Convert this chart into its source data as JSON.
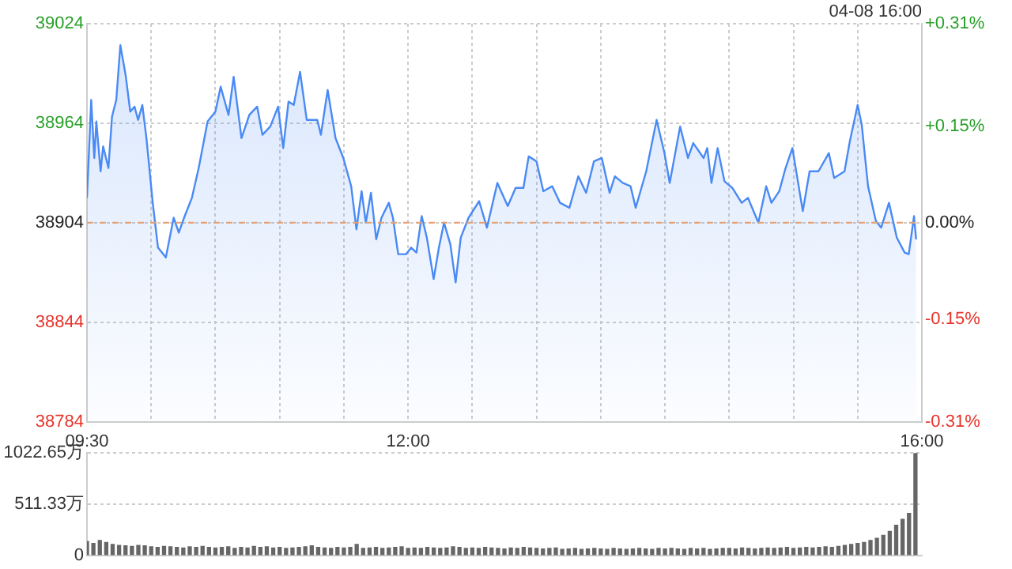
{
  "chart_data": [
    {
      "type": "area",
      "color": "#4a8af4",
      "x": [
        9.5,
        9.533,
        9.557,
        9.573,
        9.606,
        9.626,
        9.667,
        9.695,
        9.728,
        9.76,
        9.801,
        9.837,
        9.87,
        9.898,
        9.931,
        9.963,
        10.012,
        10.053,
        10.114,
        10.175,
        10.215,
        10.256,
        10.317,
        10.37,
        10.439,
        10.5,
        10.541,
        10.602,
        10.642,
        10.703,
        10.764,
        10.825,
        10.866,
        10.927,
        10.988,
        11.028,
        11.069,
        11.11,
        11.159,
        11.211,
        11.293,
        11.321,
        11.374,
        11.435,
        11.496,
        11.557,
        11.598,
        11.638,
        11.671,
        11.711,
        11.752,
        11.793,
        11.85,
        11.882,
        11.923,
        11.984,
        12.024,
        12.065,
        12.106,
        12.146,
        12.199,
        12.24,
        12.28,
        12.329,
        12.37,
        12.41,
        12.471,
        12.553,
        12.614,
        12.695,
        12.776,
        12.837,
        12.898,
        12.939,
        13.0,
        13.053,
        13.122,
        13.183,
        13.256,
        13.325,
        13.386,
        13.447,
        13.508,
        13.569,
        13.61,
        13.671,
        13.732,
        13.772,
        13.854,
        13.935,
        13.996,
        14.037,
        14.118,
        14.179,
        14.22,
        14.301,
        14.329,
        14.362,
        14.41,
        14.463,
        14.524,
        14.597,
        14.646,
        14.727,
        14.788,
        14.829,
        14.89,
        14.939,
        14.992,
        15.073,
        15.126,
        15.195,
        15.276,
        15.317,
        15.398,
        15.439,
        15.5,
        15.532,
        15.581,
        15.642,
        15.683,
        15.744,
        15.805,
        15.866,
        15.898,
        15.939,
        15.955
      ],
      "values": [
        38919,
        38978,
        38943,
        38965,
        38935,
        38950,
        38937,
        38968,
        38978,
        39011,
        38993,
        38971,
        38974,
        38966,
        38975,
        38955,
        38916,
        38889,
        38883,
        38907,
        38898,
        38907,
        38919,
        38937,
        38965,
        38971,
        38986,
        38969,
        38992,
        38955,
        38969,
        38974,
        38957,
        38962,
        38974,
        38949,
        38977,
        38975,
        38995,
        38966,
        38966,
        38957,
        38984,
        38955,
        38943,
        38926,
        38900,
        38923,
        38904,
        38922,
        38894,
        38907,
        38916,
        38907,
        38885,
        38885,
        38889,
        38886,
        38908,
        38895,
        38870,
        38889,
        38904,
        38891,
        38868,
        38895,
        38907,
        38917,
        38901,
        38928,
        38914,
        38925,
        38925,
        38944,
        38941,
        38923,
        38926,
        38916,
        38913,
        38932,
        38922,
        38941,
        38943,
        38922,
        38932,
        38928,
        38926,
        38913,
        38935,
        38966,
        38946,
        38928,
        38962,
        38943,
        38952,
        38943,
        38949,
        38928,
        38949,
        38929,
        38925,
        38916,
        38919,
        38904,
        38926,
        38916,
        38923,
        38937,
        38949,
        38911,
        38935,
        38935,
        38946,
        38931,
        38935,
        38953,
        38975,
        38963,
        38926,
        38905,
        38901,
        38916,
        38895,
        38886,
        38885,
        38908,
        38894
      ],
      "xlim": [
        9.5,
        16
      ],
      "xticks": [
        {
          "value": 9.5,
          "label": "09:30"
        },
        {
          "value": 10,
          "label": null
        },
        {
          "value": 10.5,
          "label": null
        },
        {
          "value": 11,
          "label": null
        },
        {
          "value": 11.5,
          "label": null
        },
        {
          "value": 12,
          "label": "12:00"
        },
        {
          "value": 12.5,
          "label": null
        },
        {
          "value": 13,
          "label": null
        },
        {
          "value": 13.5,
          "label": null
        },
        {
          "value": 14,
          "label": null
        },
        {
          "value": 14.5,
          "label": null
        },
        {
          "value": 15,
          "label": null
        },
        {
          "value": 15.5,
          "label": null
        },
        {
          "value": 16,
          "label": "16:00"
        }
      ],
      "ylim": [
        38784,
        39024
      ],
      "yticks": [
        38784,
        38844,
        38904,
        38964,
        39024
      ],
      "y2lim": [
        -0.31,
        0.31
      ],
      "y2ticks": [
        {
          "value": -0.31,
          "label": "-0.31%"
        },
        {
          "value": -0.15,
          "label": "-0.15%"
        },
        {
          "value": 0,
          "label": "0.00%"
        },
        {
          "value": 0.15,
          "label": "+0.15%"
        },
        {
          "value": 0.31,
          "label": "+0.31%"
        }
      ],
      "grid": true,
      "legend": false,
      "ref_lines": [
        {
          "axis": "y",
          "value": 38904,
          "color": "#e8a070",
          "line_style": "dashed"
        }
      ],
      "annotations": [
        "04-08 16:00"
      ]
    },
    {
      "type": "bar",
      "color": "#666666",
      "tick_labels": "y",
      "grid": "y",
      "legend": false,
      "x": [
        9.5,
        9.55,
        9.6,
        9.65,
        9.7,
        9.75,
        9.8,
        9.85,
        9.9,
        9.95,
        10.0,
        10.05,
        10.1,
        10.15,
        10.2,
        10.25,
        10.3,
        10.35,
        10.4,
        10.45,
        10.5,
        10.55,
        10.6,
        10.65,
        10.7,
        10.75,
        10.8,
        10.85,
        10.9,
        10.95,
        11.0,
        11.05,
        11.1,
        11.15,
        11.2,
        11.25,
        11.3,
        11.35,
        11.4,
        11.45,
        11.5,
        11.55,
        11.6,
        11.65,
        11.7,
        11.75,
        11.8,
        11.85,
        11.9,
        11.95,
        12.0,
        12.05,
        12.1,
        12.15,
        12.2,
        12.25,
        12.3,
        12.35,
        12.4,
        12.45,
        12.5,
        12.55,
        12.6,
        12.65,
        12.7,
        12.75,
        12.8,
        12.85,
        12.9,
        12.95,
        13.0,
        13.05,
        13.1,
        13.15,
        13.2,
        13.25,
        13.3,
        13.35,
        13.4,
        13.45,
        13.5,
        13.55,
        13.6,
        13.65,
        13.7,
        13.75,
        13.8,
        13.85,
        13.9,
        13.95,
        14.0,
        14.05,
        14.1,
        14.15,
        14.2,
        14.25,
        14.3,
        14.35,
        14.4,
        14.45,
        14.5,
        14.55,
        14.6,
        14.65,
        14.7,
        14.75,
        14.8,
        14.85,
        14.9,
        14.95,
        15.0,
        15.05,
        15.1,
        15.15,
        15.2,
        15.25,
        15.3,
        15.35,
        15.4,
        15.45,
        15.5,
        15.55,
        15.6,
        15.65,
        15.7,
        15.75,
        15.8,
        15.85,
        15.9,
        15.95
      ],
      "values": [
        140,
        120,
        150,
        130,
        110,
        100,
        95,
        90,
        100,
        95,
        85,
        80,
        90,
        85,
        80,
        75,
        85,
        80,
        90,
        80,
        75,
        80,
        85,
        70,
        80,
        75,
        90,
        80,
        85,
        75,
        80,
        70,
        75,
        80,
        85,
        95,
        80,
        75,
        70,
        80,
        75,
        80,
        110,
        70,
        75,
        80,
        70,
        75,
        80,
        85,
        70,
        75,
        70,
        80,
        75,
        70,
        75,
        85,
        80,
        70,
        75,
        70,
        80,
        75,
        70,
        65,
        75,
        70,
        80,
        75,
        70,
        65,
        70,
        75,
        60,
        65,
        70,
        60,
        65,
        70,
        65,
        60,
        70,
        65,
        60,
        65,
        70,
        65,
        60,
        70,
        65,
        70,
        65,
        60,
        70,
        65,
        70,
        60,
        65,
        70,
        70,
        65,
        75,
        70,
        65,
        70,
        75,
        70,
        75,
        80,
        70,
        75,
        80,
        75,
        80,
        85,
        80,
        90,
        100,
        110,
        120,
        130,
        150,
        170,
        200,
        240,
        300,
        360,
        420,
        1022.65
      ],
      "xlim": [
        9.5,
        16
      ],
      "ylim": [
        0,
        1022.65
      ],
      "yticks": [
        {
          "value": 0,
          "label": "0"
        },
        {
          "value": 511.33,
          "label": "511.33万"
        },
        {
          "value": 1022.65,
          "label": "1022.65万"
        }
      ]
    }
  ]
}
